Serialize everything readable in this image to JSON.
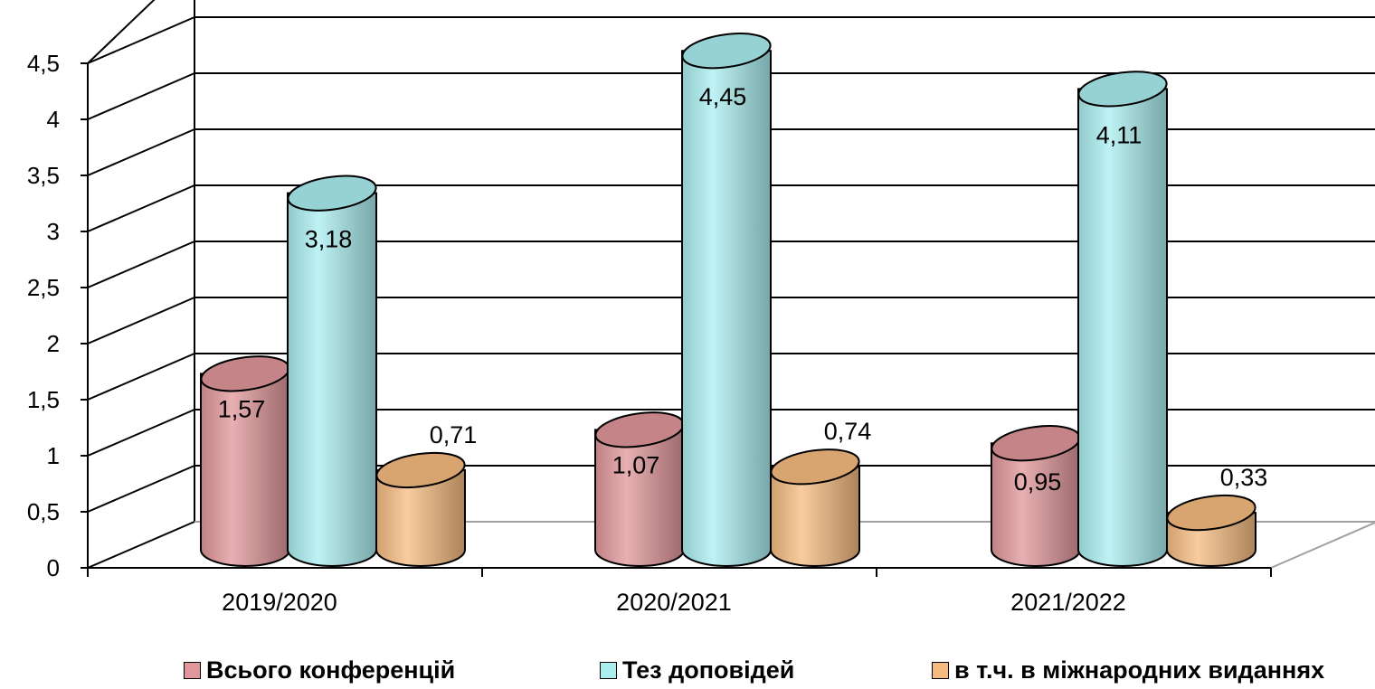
{
  "chart_data": {
    "type": "bar",
    "style": "3d-cylinder",
    "categories": [
      "2019/2020",
      "2020/2021",
      "2021/2022"
    ],
    "series": [
      {
        "name": "Всього конференцій",
        "values": [
          1.57,
          1.07,
          0.95
        ],
        "labels": [
          "1,57",
          "1,07",
          "0,95"
        ],
        "color": "#e0969a"
      },
      {
        "name": "Тез доповідей",
        "values": [
          3.18,
          4.45,
          4.11
        ],
        "labels": [
          "3,18",
          "4,45",
          "4,11"
        ],
        "color": "#aaeef0"
      },
      {
        "name": "в т.ч. в міжнародних виданнях",
        "values": [
          0.71,
          0.74,
          0.33
        ],
        "labels": [
          "0,71",
          "0,74",
          "0,33"
        ],
        "color": "#f5bb80"
      }
    ],
    "ylim": [
      0,
      4.5
    ],
    "yticks": [
      "0",
      "0,5",
      "1",
      "1,5",
      "2",
      "2,5",
      "3",
      "3,5",
      "4",
      "4,5"
    ],
    "grid": true,
    "legend_position": "bottom"
  }
}
